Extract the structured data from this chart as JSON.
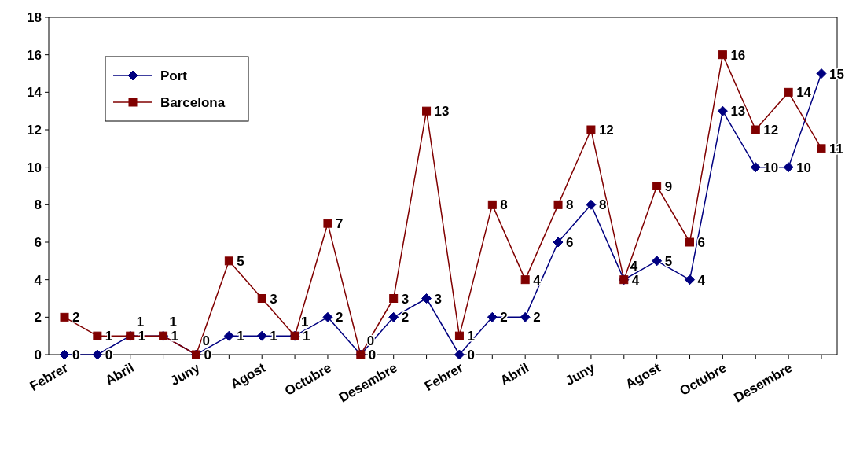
{
  "chart_data": {
    "type": "line",
    "categories": [
      "Febrer",
      null,
      "Abril",
      null,
      "Juny",
      null,
      "Agost",
      null,
      "Octubre",
      null,
      "Desembre",
      null,
      "Febrer",
      null,
      "Abril",
      null,
      "Juny",
      null,
      "Agost",
      null,
      "Octubre",
      null,
      "Desembre",
      null
    ],
    "series": [
      {
        "name": "Port",
        "color": "#000080",
        "marker": "diamond",
        "values": [
          0,
          0,
          1,
          1,
          0,
          1,
          1,
          1,
          2,
          0,
          2,
          3,
          0,
          2,
          2,
          6,
          8,
          4,
          5,
          4,
          13,
          10,
          10,
          15
        ]
      },
      {
        "name": "Barcelona",
        "color": "#800000",
        "marker": "square",
        "values": [
          2,
          1,
          1,
          1,
          0,
          5,
          3,
          1,
          7,
          0,
          3,
          13,
          1,
          8,
          4,
          8,
          12,
          4,
          9,
          6,
          16,
          12,
          14,
          11
        ]
      }
    ],
    "ylim": [
      0,
      18
    ],
    "yticks": [
      0,
      2,
      4,
      6,
      8,
      10,
      12,
      14,
      16,
      18
    ],
    "grid": false,
    "legend": "top left",
    "data_labels": true,
    "line_style": "solid"
  }
}
